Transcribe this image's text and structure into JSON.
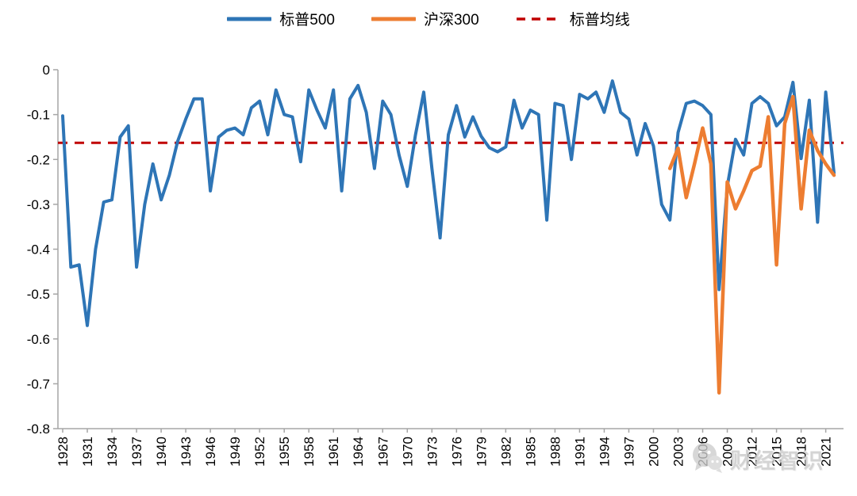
{
  "page": {
    "background": "#ffffff"
  },
  "watermark": {
    "text": "财经智识",
    "icon": "wechat-chat-bubbles-icon",
    "color": "#c9c9c9"
  },
  "chart_data": {
    "type": "line",
    "title": "",
    "xlabel": "",
    "ylabel": "",
    "ylim": [
      -0.8,
      0
    ],
    "grid": false,
    "legend_position": "top-center",
    "axis_color": "#a6a6a6",
    "yticks": {
      "values": [
        0,
        -0.1,
        -0.2,
        -0.3,
        -0.4,
        -0.5,
        -0.6,
        -0.7,
        -0.8
      ],
      "labels": [
        "0",
        "-0.1",
        "-0.2",
        "-0.3",
        "-0.4",
        "-0.5",
        "-0.6",
        "-0.7",
        "-0.8"
      ]
    },
    "xticks": {
      "values": [
        1928,
        1931,
        1934,
        1937,
        1940,
        1943,
        1946,
        1949,
        1952,
        1955,
        1958,
        1961,
        1964,
        1967,
        1970,
        1973,
        1976,
        1979,
        1982,
        1985,
        1988,
        1991,
        1994,
        1997,
        2000,
        2003,
        2006,
        2009,
        2012,
        2015,
        2018,
        2021
      ],
      "labels": [
        "1928",
        "1931",
        "1934",
        "1937",
        "1940",
        "1943",
        "1946",
        "1949",
        "1952",
        "1955",
        "1958",
        "1961",
        "1964",
        "1967",
        "1970",
        "1973",
        "1976",
        "1979",
        "1982",
        "1985",
        "1988",
        "1991",
        "1994",
        "1997",
        "2000",
        "2003",
        "2006",
        "2009",
        "2012",
        "2015",
        "2018",
        "2021"
      ]
    },
    "legend": [
      {
        "label": "标普500",
        "color": "#2E75B6",
        "style": "solid"
      },
      {
        "label": "沪深300",
        "color": "#ED7D31",
        "style": "solid"
      },
      {
        "label": "标普均线",
        "color": "#C00000",
        "style": "dashed"
      }
    ],
    "mean_line": {
      "name": "标普均线",
      "value": -0.163,
      "color": "#C00000"
    },
    "series": [
      {
        "name": "标普500",
        "color": "#2E75B6",
        "width": 4,
        "x_start": 1928,
        "values": [
          -0.103,
          -0.44,
          -0.435,
          -0.57,
          -0.4,
          -0.295,
          -0.29,
          -0.15,
          -0.125,
          -0.44,
          -0.3,
          -0.21,
          -0.29,
          -0.235,
          -0.16,
          -0.11,
          -0.065,
          -0.065,
          -0.27,
          -0.15,
          -0.135,
          -0.13,
          -0.145,
          -0.085,
          -0.07,
          -0.145,
          -0.045,
          -0.1,
          -0.105,
          -0.205,
          -0.045,
          -0.09,
          -0.13,
          -0.045,
          -0.27,
          -0.065,
          -0.035,
          -0.095,
          -0.22,
          -0.07,
          -0.1,
          -0.19,
          -0.26,
          -0.145,
          -0.05,
          -0.22,
          -0.375,
          -0.145,
          -0.08,
          -0.15,
          -0.105,
          -0.148,
          -0.174,
          -0.183,
          -0.172,
          -0.068,
          -0.13,
          -0.09,
          -0.1,
          -0.335,
          -0.075,
          -0.08,
          -0.2,
          -0.055,
          -0.065,
          -0.05,
          -0.095,
          -0.025,
          -0.095,
          -0.11,
          -0.19,
          -0.12,
          -0.17,
          -0.3,
          -0.335,
          -0.14,
          -0.075,
          -0.07,
          -0.08,
          -0.1,
          -0.49,
          -0.26,
          -0.155,
          -0.19,
          -0.075,
          -0.06,
          -0.075,
          -0.125,
          -0.105,
          -0.028,
          -0.198,
          -0.068,
          -0.34,
          -0.05,
          -0.23
        ]
      },
      {
        "name": "沪深300",
        "color": "#ED7D31",
        "width": 4.5,
        "x_start": 2002,
        "values": [
          -0.22,
          -0.175,
          -0.285,
          -0.21,
          -0.13,
          -0.21,
          -0.72,
          -0.25,
          -0.31,
          -0.27,
          -0.225,
          -0.215,
          -0.105,
          -0.435,
          -0.12,
          -0.06,
          -0.31,
          -0.135,
          -0.18,
          -0.21,
          -0.235
        ]
      }
    ]
  }
}
